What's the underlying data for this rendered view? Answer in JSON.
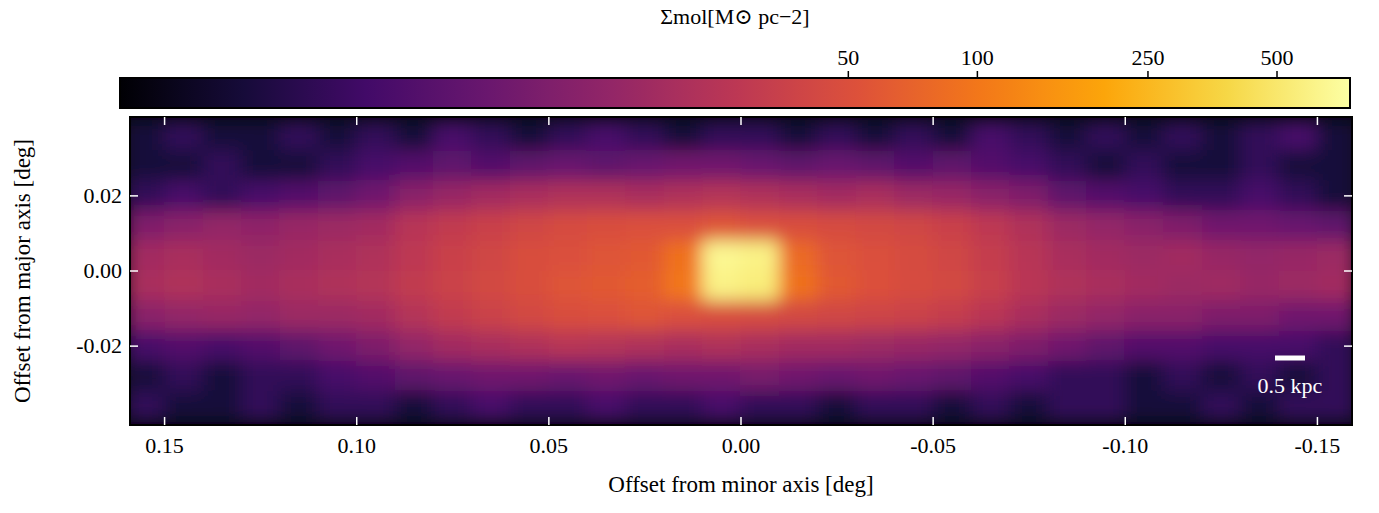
{
  "chart_data": {
    "type": "heatmap",
    "x_label": "Offset from minor axis [deg]",
    "y_label": "Offset from major axis [deg]",
    "xlim": [
      0.159,
      -0.159
    ],
    "ylim": [
      -0.041,
      0.041
    ],
    "xticks": [
      0.15,
      {
        "value": 0.1,
        "label": "0.10"
      },
      0.05,
      {
        "value": 0,
        "label": "0.00"
      },
      -0.05,
      {
        "value": -0.1,
        "label": "-0.10"
      },
      -0.15
    ],
    "yticks": [
      0.02,
      {
        "value": 0,
        "label": "0.00"
      },
      -0.02
    ],
    "x": [
      0.155,
      0.145,
      0.135,
      0.125,
      0.115,
      0.105,
      0.095,
      0.085,
      0.075,
      0.065,
      0.055,
      0.045,
      0.035,
      0.025,
      0.015,
      0.005,
      -0.005,
      -0.015,
      -0.025,
      -0.035,
      -0.045,
      -0.055,
      -0.065,
      -0.075,
      -0.085,
      -0.095,
      -0.105,
      -0.115,
      -0.125,
      -0.135,
      -0.145,
      -0.155
    ],
    "y": [
      0.036,
      0.028,
      0.02,
      0.012,
      0.004,
      -0.004,
      -0.012,
      -0.02,
      -0.028,
      -0.036
    ],
    "z": [
      [
        2,
        3,
        2,
        2,
        3,
        2,
        3,
        2,
        4,
        3,
        2,
        3,
        4,
        3,
        2,
        3,
        3,
        2,
        3,
        2,
        3,
        2,
        4,
        3,
        2,
        3,
        2,
        3,
        2,
        3,
        4,
        2
      ],
      [
        2,
        2,
        3,
        2,
        2,
        3,
        4,
        5,
        6,
        5,
        6,
        7,
        6,
        7,
        8,
        8,
        7,
        6,
        7,
        6,
        5,
        6,
        5,
        4,
        3,
        2,
        3,
        2,
        2,
        3,
        2,
        2
      ],
      [
        3,
        4,
        3,
        4,
        5,
        6,
        8,
        12,
        15,
        18,
        20,
        22,
        22,
        20,
        22,
        24,
        22,
        20,
        18,
        20,
        16,
        15,
        12,
        10,
        6,
        5,
        4,
        3,
        3,
        4,
        3,
        2
      ],
      [
        10,
        12,
        14,
        13,
        15,
        16,
        18,
        25,
        30,
        35,
        40,
        45,
        48,
        50,
        50,
        55,
        50,
        48,
        45,
        42,
        40,
        35,
        28,
        22,
        16,
        14,
        12,
        10,
        8,
        8,
        7,
        6
      ],
      [
        18,
        20,
        18,
        16,
        18,
        20,
        22,
        28,
        35,
        40,
        48,
        50,
        55,
        60,
        90,
        650,
        600,
        80,
        55,
        50,
        45,
        40,
        32,
        25,
        20,
        18,
        16,
        18,
        15,
        14,
        15,
        16
      ],
      [
        20,
        22,
        20,
        18,
        20,
        22,
        24,
        30,
        36,
        42,
        48,
        55,
        60,
        65,
        100,
        600,
        550,
        90,
        60,
        52,
        46,
        42,
        34,
        26,
        22,
        20,
        18,
        16,
        17,
        15,
        16,
        18
      ],
      [
        12,
        14,
        15,
        14,
        16,
        16,
        18,
        24,
        30,
        36,
        42,
        48,
        50,
        55,
        50,
        48,
        45,
        42,
        40,
        38,
        36,
        32,
        26,
        20,
        16,
        14,
        12,
        12,
        10,
        10,
        8,
        8
      ],
      [
        4,
        5,
        4,
        5,
        6,
        8,
        10,
        14,
        18,
        20,
        22,
        25,
        24,
        22,
        20,
        22,
        20,
        18,
        18,
        16,
        15,
        14,
        12,
        10,
        8,
        6,
        5,
        5,
        4,
        4,
        4,
        3
      ],
      [
        2,
        3,
        2,
        3,
        3,
        4,
        5,
        6,
        7,
        8,
        8,
        7,
        8,
        7,
        8,
        8,
        9,
        8,
        7,
        8,
        7,
        6,
        5,
        4,
        3,
        3,
        2,
        3,
        2,
        3,
        2,
        3
      ],
      [
        3,
        2,
        2,
        3,
        2,
        3,
        3,
        2,
        3,
        4,
        3,
        3,
        4,
        3,
        3,
        4,
        3,
        3,
        2,
        3,
        3,
        2,
        3,
        2,
        3,
        3,
        2,
        2,
        3,
        2,
        3,
        3
      ]
    ],
    "colorbar": {
      "label": "Σmol[M⊙ pc−2]",
      "range": [
        1,
        740
      ],
      "ticks": [
        50,
        100,
        250,
        500
      ],
      "log": true
    },
    "scale_bar": {
      "label": "0.5 kpc",
      "length": 0.0078
    }
  }
}
